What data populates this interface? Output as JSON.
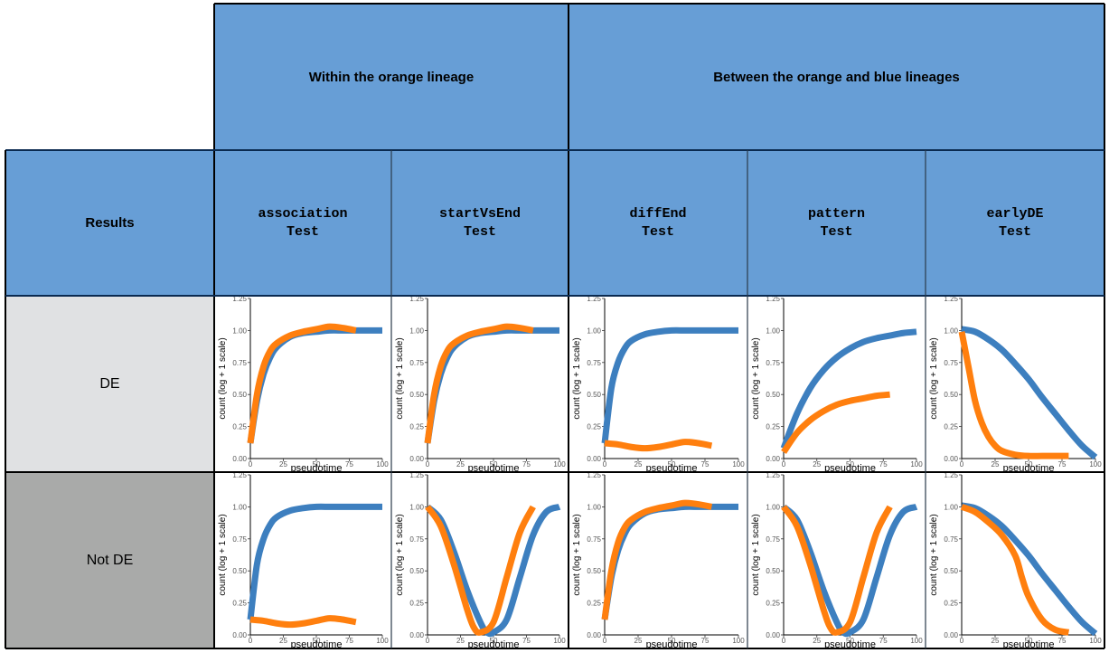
{
  "groups": {
    "within": "Within the orange lineage",
    "between": "Between the orange and blue lineages"
  },
  "corner": "Results",
  "tests": [
    {
      "line1": "association",
      "line2": "Test"
    },
    {
      "line1": "startVsEnd",
      "line2": "Test"
    },
    {
      "line1": "diffEnd",
      "line2": "Test"
    },
    {
      "line1": "pattern",
      "line2": "Test"
    },
    {
      "line1": "earlyDE",
      "line2": "Test"
    }
  ],
  "rows": [
    "DE",
    "Not DE"
  ],
  "colors": {
    "header": "#679ed6",
    "row_de": "#e0e1e3",
    "row_notde": "#a9aaa9",
    "blue_line": "#3d7fbf",
    "orange_line": "#ff7f0e"
  },
  "axes": {
    "xlabel": "pseudotime",
    "ylabel": "count (log + 1 scale)",
    "xticks": [
      "0",
      "25",
      "50",
      "75",
      "100"
    ],
    "yticks": [
      "0.00",
      "0.25",
      "0.50",
      "0.75",
      "1.00",
      "1.25"
    ],
    "xlim": [
      0,
      100
    ],
    "ylim": [
      0,
      1.25
    ]
  },
  "chart_data": [
    {
      "type": "line",
      "row": "DE",
      "test": "associationTest",
      "series": [
        {
          "color": "blue",
          "x": [
            0,
            5,
            10,
            15,
            20,
            30,
            40,
            50,
            60,
            70,
            80,
            90,
            100
          ],
          "y": [
            0.12,
            0.45,
            0.66,
            0.79,
            0.87,
            0.95,
            0.98,
            0.99,
            1.0,
            1.0,
            1.0,
            1.0,
            1.0
          ]
        },
        {
          "color": "orange",
          "x": [
            0,
            5,
            10,
            15,
            20,
            30,
            40,
            50,
            60,
            70,
            80
          ],
          "y": [
            0.12,
            0.5,
            0.72,
            0.84,
            0.9,
            0.96,
            0.99,
            1.01,
            1.03,
            1.02,
            1.0
          ]
        }
      ]
    },
    {
      "type": "line",
      "row": "DE",
      "test": "startVsEndTest",
      "series": [
        {
          "color": "blue",
          "x": [
            0,
            5,
            10,
            15,
            20,
            30,
            40,
            50,
            60,
            70,
            80,
            90,
            100
          ],
          "y": [
            0.12,
            0.45,
            0.66,
            0.79,
            0.87,
            0.95,
            0.98,
            0.99,
            1.0,
            1.0,
            1.0,
            1.0,
            1.0
          ]
        },
        {
          "color": "orange",
          "x": [
            0,
            5,
            10,
            15,
            20,
            30,
            40,
            50,
            60,
            70,
            80
          ],
          "y": [
            0.12,
            0.5,
            0.72,
            0.84,
            0.9,
            0.96,
            0.99,
            1.01,
            1.03,
            1.02,
            1.0
          ]
        }
      ]
    },
    {
      "type": "line",
      "row": "DE",
      "test": "diffEndTest",
      "series": [
        {
          "color": "blue",
          "x": [
            0,
            5,
            10,
            15,
            20,
            30,
            40,
            50,
            60,
            70,
            80,
            90,
            100
          ],
          "y": [
            0.12,
            0.55,
            0.75,
            0.86,
            0.92,
            0.97,
            0.99,
            1.0,
            1.0,
            1.0,
            1.0,
            1.0,
            1.0
          ]
        },
        {
          "color": "orange",
          "x": [
            0,
            10,
            20,
            30,
            40,
            50,
            60,
            70,
            80
          ],
          "y": [
            0.12,
            0.11,
            0.09,
            0.08,
            0.09,
            0.11,
            0.13,
            0.12,
            0.1
          ]
        }
      ]
    },
    {
      "type": "line",
      "row": "DE",
      "test": "patternTest",
      "series": [
        {
          "color": "blue",
          "x": [
            0,
            10,
            20,
            30,
            40,
            50,
            60,
            70,
            80,
            90,
            100
          ],
          "y": [
            0.08,
            0.35,
            0.55,
            0.69,
            0.79,
            0.86,
            0.91,
            0.94,
            0.96,
            0.98,
            0.99
          ]
        },
        {
          "color": "orange",
          "x": [
            0,
            10,
            20,
            30,
            40,
            50,
            60,
            70,
            80
          ],
          "y": [
            0.05,
            0.2,
            0.3,
            0.37,
            0.42,
            0.45,
            0.47,
            0.49,
            0.5
          ]
        }
      ]
    },
    {
      "type": "line",
      "row": "DE",
      "test": "earlyDETest",
      "series": [
        {
          "color": "blue",
          "x": [
            0,
            10,
            20,
            30,
            40,
            50,
            60,
            70,
            80,
            90,
            100
          ],
          "y": [
            1.01,
            0.99,
            0.93,
            0.85,
            0.74,
            0.62,
            0.48,
            0.35,
            0.22,
            0.1,
            0.01
          ]
        },
        {
          "color": "orange",
          "x": [
            0,
            5,
            10,
            15,
            20,
            25,
            30,
            40,
            50,
            60,
            70,
            80
          ],
          "y": [
            0.99,
            0.72,
            0.45,
            0.28,
            0.17,
            0.1,
            0.06,
            0.03,
            0.02,
            0.02,
            0.02,
            0.02
          ]
        }
      ]
    },
    {
      "type": "line",
      "row": "Not DE",
      "test": "associationTest",
      "series": [
        {
          "color": "blue",
          "x": [
            0,
            5,
            10,
            15,
            20,
            30,
            40,
            50,
            60,
            70,
            80,
            90,
            100
          ],
          "y": [
            0.12,
            0.55,
            0.75,
            0.86,
            0.92,
            0.97,
            0.99,
            1.0,
            1.0,
            1.0,
            1.0,
            1.0,
            1.0
          ]
        },
        {
          "color": "orange",
          "x": [
            0,
            10,
            20,
            30,
            40,
            50,
            60,
            70,
            80
          ],
          "y": [
            0.12,
            0.11,
            0.09,
            0.08,
            0.09,
            0.11,
            0.13,
            0.12,
            0.1
          ]
        }
      ]
    },
    {
      "type": "line",
      "row": "Not DE",
      "test": "startVsEndTest",
      "series": [
        {
          "color": "blue",
          "x": [
            0,
            10,
            20,
            30,
            40,
            45,
            50,
            60,
            70,
            80,
            90,
            100
          ],
          "y": [
            1.0,
            0.9,
            0.65,
            0.35,
            0.1,
            0.02,
            0.02,
            0.12,
            0.45,
            0.78,
            0.96,
            1.0
          ]
        },
        {
          "color": "orange",
          "x": [
            0,
            10,
            20,
            30,
            35,
            40,
            50,
            60,
            70,
            80
          ],
          "y": [
            1.0,
            0.85,
            0.55,
            0.2,
            0.06,
            0.02,
            0.1,
            0.45,
            0.8,
            1.0
          ]
        }
      ]
    },
    {
      "type": "line",
      "row": "Not DE",
      "test": "diffEndTest",
      "series": [
        {
          "color": "blue",
          "x": [
            0,
            5,
            10,
            15,
            20,
            30,
            40,
            50,
            60,
            70,
            80,
            90,
            100
          ],
          "y": [
            0.12,
            0.45,
            0.66,
            0.79,
            0.87,
            0.95,
            0.98,
            0.99,
            1.0,
            1.0,
            1.0,
            1.0,
            1.0
          ]
        },
        {
          "color": "orange",
          "x": [
            0,
            5,
            10,
            15,
            20,
            30,
            40,
            50,
            60,
            70,
            80
          ],
          "y": [
            0.12,
            0.5,
            0.72,
            0.84,
            0.9,
            0.96,
            0.99,
            1.01,
            1.03,
            1.02,
            1.0
          ]
        }
      ]
    },
    {
      "type": "line",
      "row": "Not DE",
      "test": "patternTest",
      "series": [
        {
          "color": "blue",
          "x": [
            0,
            10,
            20,
            30,
            40,
            45,
            50,
            60,
            70,
            80,
            90,
            100
          ],
          "y": [
            1.0,
            0.9,
            0.65,
            0.35,
            0.1,
            0.02,
            0.02,
            0.12,
            0.45,
            0.78,
            0.96,
            1.0
          ]
        },
        {
          "color": "orange",
          "x": [
            0,
            10,
            20,
            30,
            35,
            40,
            50,
            60,
            70,
            80
          ],
          "y": [
            1.0,
            0.85,
            0.55,
            0.2,
            0.06,
            0.02,
            0.1,
            0.45,
            0.8,
            1.0
          ]
        }
      ]
    },
    {
      "type": "line",
      "row": "Not DE",
      "test": "earlyDETest",
      "series": [
        {
          "color": "blue",
          "x": [
            0,
            10,
            20,
            30,
            40,
            50,
            60,
            70,
            80,
            90,
            100
          ],
          "y": [
            1.01,
            0.99,
            0.93,
            0.85,
            0.74,
            0.62,
            0.48,
            0.35,
            0.22,
            0.1,
            0.01
          ]
        },
        {
          "color": "orange",
          "x": [
            0,
            10,
            20,
            30,
            40,
            45,
            50,
            60,
            70,
            80
          ],
          "y": [
            1.0,
            0.96,
            0.88,
            0.78,
            0.62,
            0.45,
            0.3,
            0.12,
            0.04,
            0.02
          ]
        }
      ]
    }
  ]
}
